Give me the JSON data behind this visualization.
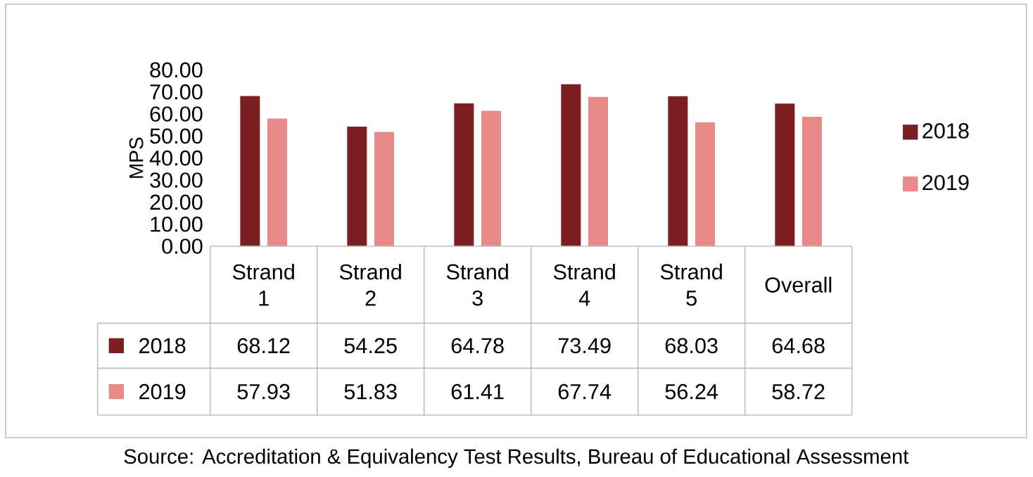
{
  "chart_data": {
    "type": "bar",
    "categories": [
      "Strand 1",
      "Strand 2",
      "Strand 3",
      "Strand 4",
      "Strand 5",
      "Overall"
    ],
    "series": [
      {
        "name": "2018",
        "color": "#7b1f22",
        "values": [
          68.12,
          54.25,
          64.78,
          73.49,
          68.03,
          64.68
        ]
      },
      {
        "name": "2019",
        "color": "#e88a87",
        "values": [
          57.93,
          51.83,
          61.41,
          67.74,
          56.24,
          58.72
        ]
      }
    ],
    "ylabel": "MPS",
    "ylim": [
      0,
      80
    ],
    "yticks": [
      {
        "value": 0,
        "label": "0.00"
      },
      {
        "value": 10,
        "label": "10.00"
      },
      {
        "value": 20,
        "label": "20.00"
      },
      {
        "value": 30,
        "label": "30.00"
      },
      {
        "value": 40,
        "label": "40.00"
      },
      {
        "value": 50,
        "label": "50.00"
      },
      {
        "value": 60,
        "label": "60.00"
      },
      {
        "value": 70,
        "label": "70.00"
      },
      {
        "value": 80,
        "label": "80.00"
      }
    ],
    "legend": "right",
    "data_labels": true,
    "annotations": [
      "Source: Accreditation & Equivalency Test Results, Bureau of Educational Assessment"
    ]
  }
}
